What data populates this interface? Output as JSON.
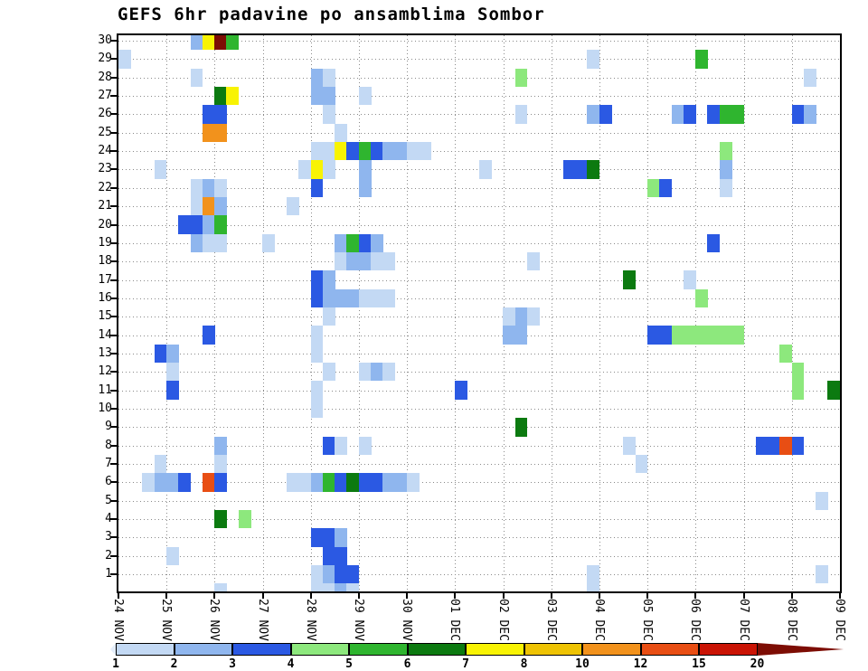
{
  "title": "GEFS 6hr padavine po ansamblima Sombor",
  "chart_data": {
    "type": "heatmap",
    "title": "GEFS 6hr padavine po ansamblima Sombor",
    "xlabel": "",
    "ylabel": "",
    "grid": "dotted",
    "n_slots": 60,
    "slots_per_day": 4,
    "x_ticks": [
      "24 NOV",
      "25 NOV",
      "26 NOV",
      "27 NOV",
      "28 NOV",
      "29 NOV",
      "30 NOV",
      "01 DEC",
      "02 DEC",
      "03 DEC",
      "04 DEC",
      "05 DEC",
      "06 DEC",
      "07 DEC",
      "08 DEC",
      "09 DEC"
    ],
    "y_ticks": [
      "1",
      "2",
      "3",
      "4",
      "5",
      "6",
      "7",
      "8",
      "9",
      "10",
      "11",
      "12",
      "13",
      "14",
      "15",
      "16",
      "17",
      "18",
      "19",
      "20",
      "21",
      "22",
      "23",
      "24",
      "25",
      "26",
      "27",
      "28",
      "29",
      "30"
    ],
    "ylim": [
      0,
      30.3
    ],
    "legend": {
      "position": "bottom",
      "labels": [
        "1",
        "2",
        "3",
        "4",
        "5",
        "6",
        "7",
        "8",
        "10",
        "12",
        "15",
        "20"
      ],
      "colors": [
        "#e4eefb",
        "#c3d9f4",
        "#8fb6ee",
        "#2b59e3",
        "#8de87d",
        "#2fb52f",
        "#0c7a10",
        "#f8f303",
        "#eec303",
        "#f2921c",
        "#e84e14",
        "#ca1405",
        "#7d0d04"
      ]
    },
    "palette": {
      "1": "#c3d9f4",
      "2": "#8fb6ee",
      "3": "#2b59e3",
      "4": "#8de87d",
      "5": "#2fb52f",
      "6": "#0c7a10",
      "7": "#f8f303",
      "8": "#eec303",
      "10": "#f2921c",
      "12": "#e84e14",
      "15": "#ca1405",
      "20": "#7d0d04"
    },
    "cells": [
      [
        30,
        6,
        2
      ],
      [
        30,
        7,
        7
      ],
      [
        30,
        8,
        20
      ],
      [
        30,
        9,
        5
      ],
      [
        29,
        0,
        1
      ],
      [
        29,
        39,
        1
      ],
      [
        29,
        48,
        5
      ],
      [
        28,
        6,
        1
      ],
      [
        28,
        16,
        2
      ],
      [
        28,
        17,
        1
      ],
      [
        28,
        33,
        4
      ],
      [
        28,
        57,
        1
      ],
      [
        27,
        8,
        6
      ],
      [
        27,
        9,
        7
      ],
      [
        27,
        16,
        2
      ],
      [
        27,
        17,
        2
      ],
      [
        27,
        20,
        1
      ],
      [
        26,
        7,
        3
      ],
      [
        26,
        8,
        3
      ],
      [
        26,
        17,
        1
      ],
      [
        26,
        33,
        1
      ],
      [
        26,
        39,
        2
      ],
      [
        26,
        40,
        3
      ],
      [
        26,
        46,
        2
      ],
      [
        26,
        47,
        3
      ],
      [
        26,
        49,
        3
      ],
      [
        26,
        50,
        5
      ],
      [
        26,
        51,
        5
      ],
      [
        26,
        56,
        3
      ],
      [
        26,
        57,
        2
      ],
      [
        25,
        7,
        10
      ],
      [
        25,
        8,
        10
      ],
      [
        25,
        18,
        1
      ],
      [
        24,
        16,
        1
      ],
      [
        24,
        17,
        1
      ],
      [
        24,
        18,
        7
      ],
      [
        24,
        19,
        3
      ],
      [
        24,
        20,
        5
      ],
      [
        24,
        21,
        3
      ],
      [
        24,
        22,
        2
      ],
      [
        24,
        23,
        2
      ],
      [
        24,
        24,
        1
      ],
      [
        24,
        25,
        1
      ],
      [
        24,
        50,
        4
      ],
      [
        23,
        3,
        1
      ],
      [
        23,
        15,
        1
      ],
      [
        23,
        16,
        7
      ],
      [
        23,
        17,
        1
      ],
      [
        23,
        20,
        2
      ],
      [
        23,
        30,
        1
      ],
      [
        23,
        37,
        3
      ],
      [
        23,
        38,
        3
      ],
      [
        23,
        39,
        6
      ],
      [
        23,
        50,
        2
      ],
      [
        22,
        6,
        1
      ],
      [
        22,
        7,
        2
      ],
      [
        22,
        8,
        1
      ],
      [
        22,
        16,
        3
      ],
      [
        22,
        20,
        2
      ],
      [
        22,
        44,
        4
      ],
      [
        22,
        45,
        3
      ],
      [
        22,
        50,
        1
      ],
      [
        21,
        6,
        1
      ],
      [
        21,
        7,
        10
      ],
      [
        21,
        8,
        2
      ],
      [
        21,
        14,
        1
      ],
      [
        20,
        5,
        3
      ],
      [
        20,
        6,
        3
      ],
      [
        20,
        7,
        2
      ],
      [
        20,
        8,
        5
      ],
      [
        19,
        6,
        2
      ],
      [
        19,
        7,
        1
      ],
      [
        19,
        8,
        1
      ],
      [
        19,
        12,
        1
      ],
      [
        19,
        18,
        2
      ],
      [
        19,
        19,
        5
      ],
      [
        19,
        20,
        3
      ],
      [
        19,
        21,
        2
      ],
      [
        19,
        49,
        3
      ],
      [
        18,
        18,
        1
      ],
      [
        18,
        19,
        2
      ],
      [
        18,
        20,
        2
      ],
      [
        18,
        21,
        1
      ],
      [
        18,
        22,
        1
      ],
      [
        18,
        34,
        1
      ],
      [
        17,
        16,
        3
      ],
      [
        17,
        17,
        2
      ],
      [
        17,
        42,
        6
      ],
      [
        17,
        47,
        1
      ],
      [
        16,
        16,
        3
      ],
      [
        16,
        17,
        2
      ],
      [
        16,
        18,
        2
      ],
      [
        16,
        19,
        2
      ],
      [
        16,
        20,
        1
      ],
      [
        16,
        21,
        1
      ],
      [
        16,
        22,
        1
      ],
      [
        16,
        48,
        4
      ],
      [
        15,
        17,
        1
      ],
      [
        15,
        32,
        1
      ],
      [
        15,
        33,
        2
      ],
      [
        15,
        34,
        1
      ],
      [
        14,
        7,
        3
      ],
      [
        14,
        16,
        1
      ],
      [
        14,
        32,
        2
      ],
      [
        14,
        33,
        2
      ],
      [
        14,
        44,
        3
      ],
      [
        14,
        45,
        3
      ],
      [
        14,
        46,
        4
      ],
      [
        14,
        47,
        4
      ],
      [
        14,
        48,
        4
      ],
      [
        14,
        49,
        4
      ],
      [
        14,
        50,
        4
      ],
      [
        14,
        51,
        4
      ],
      [
        13,
        3,
        3
      ],
      [
        13,
        4,
        2
      ],
      [
        13,
        16,
        1
      ],
      [
        13,
        55,
        4
      ],
      [
        12,
        4,
        1
      ],
      [
        12,
        17,
        1
      ],
      [
        12,
        20,
        1
      ],
      [
        12,
        21,
        2
      ],
      [
        12,
        22,
        1
      ],
      [
        12,
        56,
        4
      ],
      [
        11,
        4,
        3
      ],
      [
        11,
        16,
        1
      ],
      [
        11,
        28,
        3
      ],
      [
        11,
        56,
        4
      ],
      [
        11,
        59,
        6
      ],
      [
        10,
        16,
        1
      ],
      [
        9,
        33,
        6
      ],
      [
        8,
        8,
        2
      ],
      [
        8,
        17,
        3
      ],
      [
        8,
        18,
        1
      ],
      [
        8,
        20,
        1
      ],
      [
        8,
        42,
        1
      ],
      [
        8,
        53,
        3
      ],
      [
        8,
        54,
        3
      ],
      [
        8,
        55,
        12
      ],
      [
        8,
        56,
        3
      ],
      [
        7,
        3,
        1
      ],
      [
        7,
        8,
        1
      ],
      [
        7,
        43,
        1
      ],
      [
        6,
        2,
        1
      ],
      [
        6,
        3,
        2
      ],
      [
        6,
        4,
        2
      ],
      [
        6,
        5,
        3
      ],
      [
        6,
        7,
        12
      ],
      [
        6,
        8,
        3
      ],
      [
        6,
        14,
        1
      ],
      [
        6,
        15,
        1
      ],
      [
        6,
        16,
        2
      ],
      [
        6,
        17,
        5
      ],
      [
        6,
        18,
        3
      ],
      [
        6,
        19,
        6
      ],
      [
        6,
        20,
        3
      ],
      [
        6,
        21,
        3
      ],
      [
        6,
        22,
        2
      ],
      [
        6,
        23,
        2
      ],
      [
        6,
        24,
        1
      ],
      [
        5,
        58,
        1
      ],
      [
        4,
        8,
        6
      ],
      [
        4,
        10,
        4
      ],
      [
        3,
        16,
        3
      ],
      [
        3,
        17,
        3
      ],
      [
        3,
        18,
        2
      ],
      [
        2,
        4,
        1
      ],
      [
        2,
        17,
        3
      ],
      [
        2,
        18,
        3
      ],
      [
        1,
        16,
        1
      ],
      [
        1,
        17,
        2
      ],
      [
        1,
        18,
        3
      ],
      [
        1,
        19,
        3
      ],
      [
        1,
        39,
        1
      ],
      [
        1,
        58,
        1
      ],
      [
        0,
        8,
        1
      ],
      [
        0,
        16,
        1
      ],
      [
        0,
        17,
        1
      ],
      [
        0,
        18,
        2
      ],
      [
        0,
        19,
        1
      ],
      [
        0,
        39,
        1
      ]
    ]
  }
}
